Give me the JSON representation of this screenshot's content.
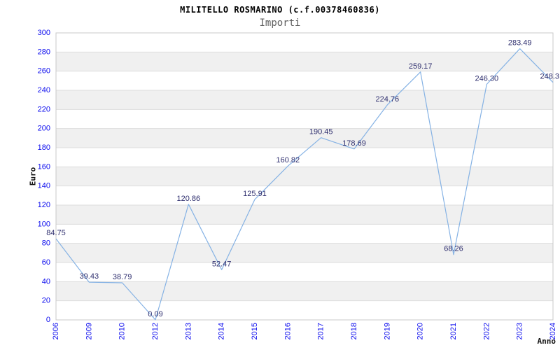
{
  "chart": {
    "title": "MILITELLO ROSMARINO (c.f.00378460836)",
    "subtitle": "Importi"
  },
  "chart_data": {
    "type": "line",
    "title": "MILITELLO ROSMARINO (c.f.00378460836)",
    "subtitle": "Importi",
    "xlabel": "Anno",
    "ylabel": "Euro",
    "categories": [
      "2006",
      "2009",
      "2010",
      "2012",
      "2013",
      "2014",
      "2015",
      "2016",
      "2017",
      "2018",
      "2019",
      "2020",
      "2021",
      "2022",
      "2023",
      "2024"
    ],
    "values": [
      84.75,
      39.43,
      38.79,
      0.09,
      120.86,
      52.47,
      125.91,
      160.82,
      190.45,
      178.69,
      224.76,
      259.17,
      68.26,
      246.3,
      283.49,
      248.3
    ],
    "point_labels": [
      "84.75",
      "39.43",
      "38.79",
      "0.09",
      "120.86",
      "52.47",
      "125.91",
      "160.82",
      "190.45",
      "178.69",
      "224.76",
      "259.17",
      "68.26",
      "246.30",
      "283.49",
      "248.3"
    ],
    "ylim": [
      0,
      300
    ],
    "ytick_step": 20,
    "grid": "horizontal-bands-alternating",
    "legend": "none",
    "colors": {
      "line": "#85b2e4",
      "band": "#f0f0f0",
      "gridline": "#dddddd",
      "border": "#c8c8c8",
      "tick_label": "#0c0cee",
      "data_label": "#2e2e6e",
      "axis_title": "#111111"
    }
  }
}
